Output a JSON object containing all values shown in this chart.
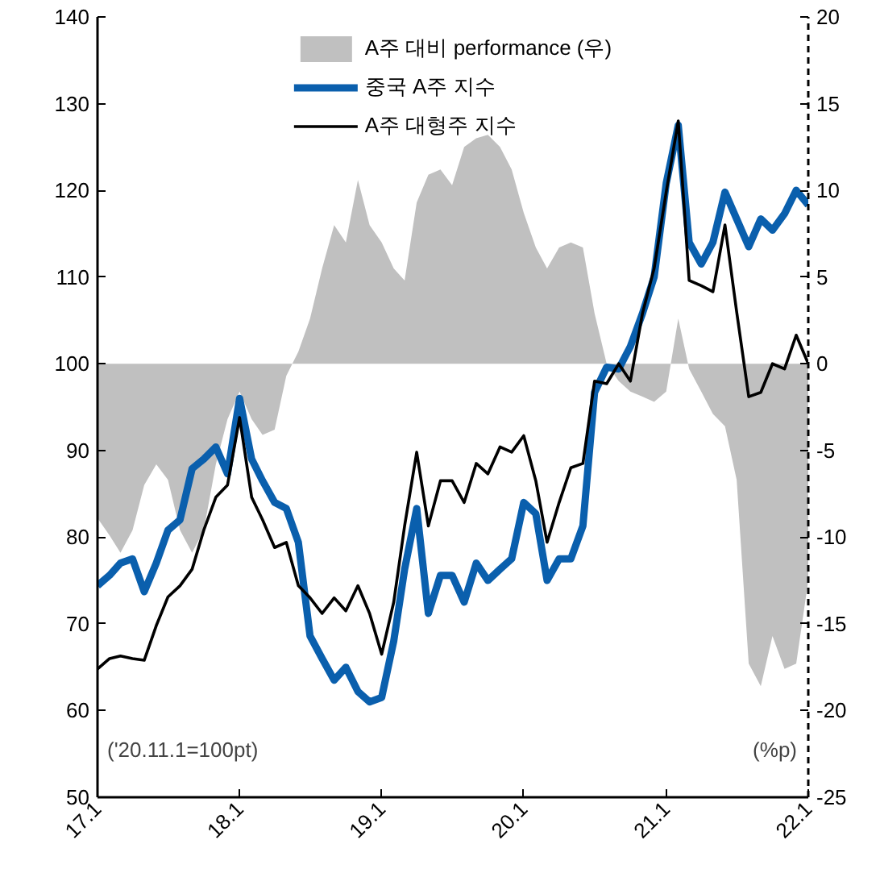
{
  "chart_data": {
    "type": "line",
    "x": [
      "2017-01",
      "2017-02",
      "2017-03",
      "2017-04",
      "2017-05",
      "2017-06",
      "2017-07",
      "2017-08",
      "2017-09",
      "2017-10",
      "2017-11",
      "2017-12",
      "2018-01",
      "2018-02",
      "2018-03",
      "2018-04",
      "2018-05",
      "2018-06",
      "2018-07",
      "2018-08",
      "2018-09",
      "2018-10",
      "2018-11",
      "2018-12",
      "2019-01",
      "2019-02",
      "2019-03",
      "2019-04",
      "2019-05",
      "2019-06",
      "2019-07",
      "2019-08",
      "2019-09",
      "2019-10",
      "2019-11",
      "2019-12",
      "2020-01",
      "2020-02",
      "2020-03",
      "2020-04",
      "2020-05",
      "2020-06",
      "2020-07",
      "2020-08",
      "2020-09",
      "2020-10",
      "2020-11",
      "2020-12",
      "2021-01",
      "2021-02",
      "2021-03",
      "2021-04",
      "2021-05",
      "2021-06",
      "2021-07",
      "2021-08",
      "2021-09",
      "2021-10",
      "2021-11",
      "2021-12",
      "2022-01"
    ],
    "series": [
      {
        "name": "A주 대비 performance (우)",
        "type": "area",
        "axis": "y2",
        "color": "#c0c0c0",
        "values": [
          -8.9,
          -9.9,
          -10.9,
          -9.6,
          -7.0,
          -5.8,
          -6.7,
          -9.6,
          -10.9,
          -9.6,
          -5.8,
          -3.2,
          -1.6,
          -3.2,
          -4.1,
          -3.8,
          -0.7,
          0.7,
          2.6,
          5.5,
          8.0,
          7.0,
          10.6,
          8.0,
          7.0,
          5.5,
          4.8,
          9.3,
          10.9,
          11.2,
          10.3,
          12.5,
          13.0,
          13.2,
          12.5,
          11.2,
          8.7,
          6.7,
          5.5,
          6.7,
          7.0,
          6.7,
          2.9,
          0.0,
          -1.0,
          -1.6,
          -1.9,
          -2.2,
          -1.6,
          2.6,
          -0.3,
          -1.6,
          -2.9,
          -3.6,
          -6.7,
          -17.3,
          -18.6,
          -15.7,
          -17.6,
          -17.3,
          -12.5
        ]
      },
      {
        "name": "중국 A주 지수",
        "color": "#0a5fad",
        "values": [
          74.4,
          75.6,
          77.0,
          77.5,
          73.7,
          77.0,
          80.8,
          82.0,
          87.9,
          89.0,
          90.4,
          87.3,
          96.0,
          89.0,
          86.5,
          84.0,
          83.3,
          79.4,
          68.6,
          66.0,
          63.5,
          65.0,
          62.2,
          61.0,
          61.5,
          68.0,
          76.3,
          83.3,
          71.2,
          75.6,
          75.6,
          72.5,
          77.0,
          75.0,
          76.3,
          77.5,
          84.0,
          82.7,
          75.0,
          77.5,
          77.5,
          81.3,
          96.7,
          99.6,
          99.4,
          102.0,
          105.8,
          110.0,
          120.8,
          127.5,
          114.0,
          111.5,
          114.0,
          119.8,
          116.7,
          113.5,
          116.7,
          115.4,
          117.3,
          120.0,
          118.3
        ]
      },
      {
        "name": "A주 대형주 지수",
        "color": "#000000",
        "values": [
          64.8,
          66.0,
          66.3,
          66.0,
          65.8,
          69.8,
          73.1,
          74.4,
          76.3,
          80.8,
          84.6,
          86.0,
          93.8,
          84.6,
          82.0,
          78.8,
          79.4,
          74.4,
          73.0,
          71.2,
          73.0,
          71.5,
          74.4,
          71.2,
          66.5,
          72.5,
          81.3,
          89.8,
          81.3,
          86.5,
          86.5,
          84.0,
          88.5,
          87.3,
          90.4,
          89.8,
          91.7,
          86.5,
          79.4,
          84.0,
          88.0,
          88.5,
          98.0,
          97.7,
          100.0,
          98.0,
          105.8,
          111.0,
          119.8,
          128.0,
          109.6,
          109.0,
          108.3,
          116.0,
          106.0,
          96.2,
          96.7,
          100.0,
          99.4,
          103.3,
          100.0
        ]
      }
    ],
    "xlim": [
      "2017-01",
      "2022-01"
    ],
    "xticks": [
      {
        "value": "2017-01",
        "label": "17.1"
      },
      {
        "value": "2018-01",
        "label": "18.1"
      },
      {
        "value": "2019-01",
        "label": "19.1"
      },
      {
        "value": "2020-01",
        "label": "20.1"
      },
      {
        "value": "2021-01",
        "label": "21.1"
      },
      {
        "value": "2022-01",
        "label": "22.1"
      }
    ],
    "ylim": [
      50,
      140
    ],
    "yticks": [
      50,
      60,
      70,
      80,
      90,
      100,
      110,
      120,
      130,
      140
    ],
    "y2lim": [
      -25,
      20
    ],
    "y2ticks": [
      -25,
      -20,
      -15,
      -10,
      -5,
      0,
      5,
      10,
      15,
      20
    ],
    "annotations": [
      "('20.11.1=100pt)",
      "(%p)"
    ],
    "legend": "top",
    "grid": false
  }
}
